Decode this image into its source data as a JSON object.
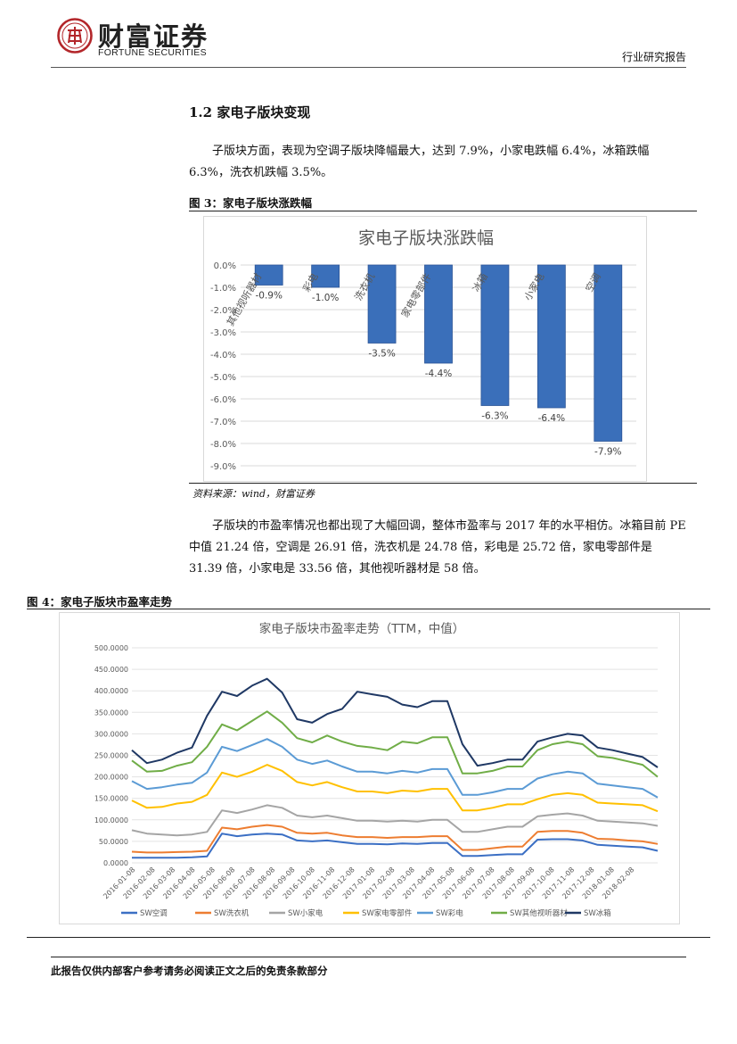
{
  "header": {
    "brand_cn": "财富证券",
    "brand_en": "FORTUNE SECURITIES",
    "report_type": "行业研究报告"
  },
  "section": {
    "title": "1.2 家电子版块变现",
    "para1": "子版块方面，表现为空调子版块降幅最大，达到 7.9%，小家电跌幅 6.4%，冰箱跌幅 6.3%，洗衣机跌幅 3.5%。",
    "para2": "子版块的市盈率情况也都出现了大幅回调，整体市盈率与 2017 年的水平相仿。冰箱目前 PE 中值 21.24 倍，空调是 26.91 倍，洗衣机是 24.78 倍，彩电是 25.72 倍，家电零部件是 31.39 倍，小家电是 33.56 倍，其他视听器材是 58 倍。"
  },
  "figure3": {
    "label": "图 3：家电子版块涨跌幅",
    "source": "资料来源：wind，财富证券"
  },
  "figure4": {
    "label": "图 4：家电子版块市盈率走势"
  },
  "footer": {
    "disclaimer": "此报告仅供内部客户参考请务必阅读正文之后的免责条款部分"
  },
  "chart_data": [
    {
      "type": "bar",
      "title": "家电子版块涨跌幅",
      "categories": [
        "其他视听器材",
        "彩电",
        "洗衣机",
        "家电零部件",
        "冰箱",
        "小家电",
        "空调"
      ],
      "values": [
        -0.9,
        -1.0,
        -3.5,
        -4.4,
        -6.3,
        -6.4,
        -7.9
      ],
      "value_labels": [
        "-0.9%",
        "-1.0%",
        "-3.5%",
        "-4.4%",
        "-6.3%",
        "-6.4%",
        "-7.9%"
      ],
      "yticks": [
        "0.0%",
        "-1.0%",
        "-2.0%",
        "-3.0%",
        "-4.0%",
        "-5.0%",
        "-6.0%",
        "-7.0%",
        "-8.0%",
        "-9.0%"
      ],
      "ylim": [
        -9,
        0
      ],
      "grid": true,
      "color": "#3a6fba"
    },
    {
      "type": "line",
      "title": "家电子版块市盈率走势（TTM，中值）",
      "ylim": [
        0,
        500
      ],
      "yticks": [
        "0.0000",
        "50.0000",
        "100.0000",
        "150.0000",
        "200.0000",
        "250.0000",
        "300.0000",
        "350.0000",
        "400.0000",
        "450.0000",
        "500.0000"
      ],
      "xticks": [
        "2016-01-08",
        "2016-02-08",
        "2016-03-08",
        "2016-04-08",
        "2016-05-08",
        "2016-06-08",
        "2016-07-08",
        "2016-08-08",
        "2016-09-08",
        "2016-10-08",
        "2016-11-08",
        "2016-12-08",
        "2017-01-08",
        "2017-02-08",
        "2017-03-08",
        "2017-04-08",
        "2017-05-08",
        "2017-06-08",
        "2017-07-08",
        "2017-08-08",
        "2017-09-08",
        "2017-10-08",
        "2017-11-08",
        "2017-12-08",
        "2018-01-08",
        "2018-02-08"
      ],
      "legend_position": "bottom",
      "grid": true,
      "series": [
        {
          "name": "SW空调",
          "color": "#3b6fc4",
          "values": [
            12,
            12,
            12,
            12,
            13,
            15,
            68,
            62,
            66,
            68,
            66,
            52,
            50,
            52,
            48,
            44,
            44,
            43,
            45,
            44,
            46,
            46,
            16,
            16,
            18,
            20,
            20,
            54,
            55,
            55,
            52,
            42,
            40,
            38,
            36,
            28
          ]
        },
        {
          "name": "SW洗衣机",
          "color": "#ed7d31",
          "values": [
            26,
            24,
            24,
            25,
            26,
            28,
            82,
            78,
            84,
            88,
            84,
            70,
            68,
            70,
            64,
            60,
            60,
            58,
            60,
            60,
            62,
            62,
            30,
            30,
            34,
            38,
            38,
            72,
            74,
            74,
            70,
            56,
            55,
            52,
            50,
            44
          ]
        },
        {
          "name": "SW小家电",
          "color": "#a5a5a5",
          "values": [
            76,
            68,
            66,
            64,
            66,
            72,
            122,
            116,
            124,
            134,
            128,
            110,
            106,
            110,
            104,
            98,
            98,
            96,
            98,
            96,
            100,
            100,
            72,
            72,
            78,
            84,
            84,
            108,
            112,
            115,
            110,
            98,
            96,
            94,
            92,
            86
          ]
        },
        {
          "name": "SW家电零部件",
          "color": "#ffc000",
          "values": [
            145,
            128,
            130,
            138,
            142,
            158,
            210,
            200,
            212,
            228,
            214,
            188,
            180,
            188,
            176,
            166,
            166,
            162,
            168,
            166,
            172,
            172,
            122,
            122,
            128,
            136,
            136,
            148,
            158,
            162,
            158,
            140,
            138,
            136,
            134,
            120
          ]
        },
        {
          "name": "SW彩电",
          "color": "#5b9bd5",
          "values": [
            190,
            172,
            176,
            182,
            186,
            210,
            270,
            260,
            274,
            288,
            270,
            240,
            230,
            238,
            224,
            212,
            212,
            208,
            214,
            210,
            218,
            218,
            158,
            158,
            164,
            172,
            172,
            196,
            206,
            212,
            208,
            184,
            180,
            176,
            172,
            152
          ]
        },
        {
          "name": "SW其他视听器材",
          "color": "#70ad47",
          "values": [
            238,
            212,
            214,
            226,
            234,
            270,
            322,
            308,
            330,
            352,
            326,
            290,
            280,
            296,
            282,
            272,
            268,
            262,
            282,
            278,
            292,
            292,
            208,
            208,
            214,
            224,
            224,
            262,
            276,
            282,
            276,
            248,
            244,
            236,
            228,
            200
          ]
        },
        {
          "name": "SW冰箱",
          "color": "#1f3864",
          "values": [
            262,
            232,
            240,
            256,
            268,
            342,
            398,
            388,
            412,
            428,
            396,
            334,
            326,
            346,
            358,
            398,
            392,
            386,
            368,
            362,
            376,
            376,
            276,
            226,
            232,
            240,
            240,
            282,
            292,
            300,
            296,
            268,
            262,
            254,
            246,
            222
          ]
        }
      ]
    }
  ]
}
